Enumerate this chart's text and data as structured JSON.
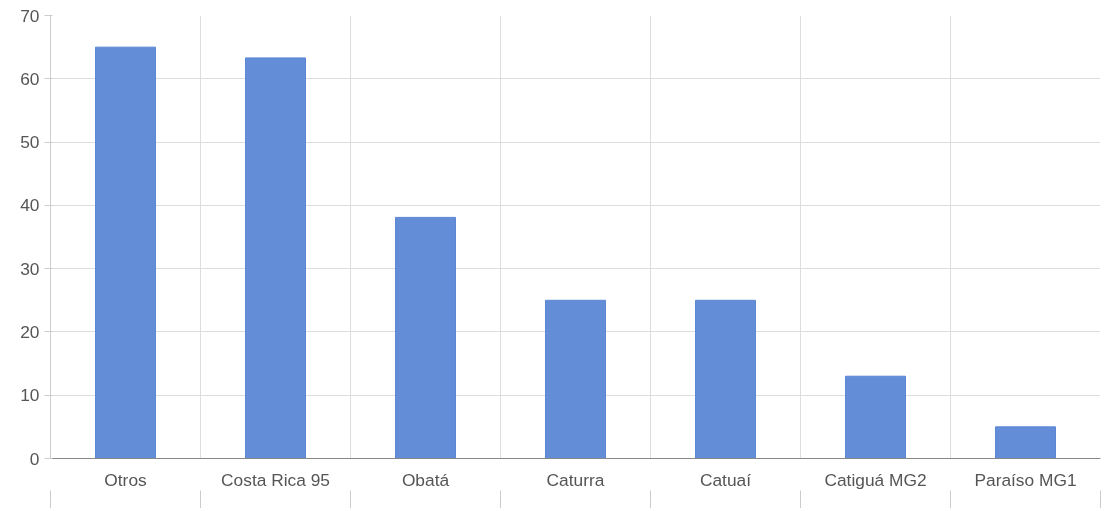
{
  "chart_data": {
    "type": "bar",
    "categories": [
      "Otros",
      "Costa Rica 95",
      "Obatá",
      "Caturra",
      "Catuaí",
      "Catiguá MG2",
      "Paraíso MG1"
    ],
    "values": [
      65,
      63.3,
      38.1,
      25,
      25,
      13,
      5
    ],
    "color": "#5b87d4",
    "ylim": [
      0,
      70
    ],
    "yticks": [
      0,
      10,
      20,
      30,
      40,
      50,
      60,
      70
    ],
    "grid": true
  }
}
